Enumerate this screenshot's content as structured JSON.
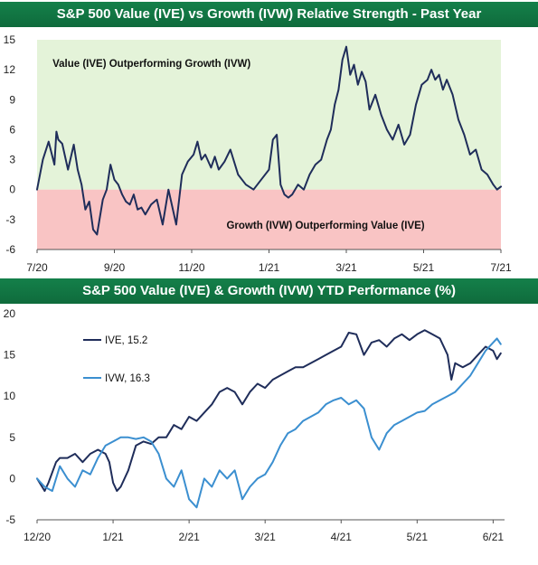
{
  "chart_data": [
    {
      "type": "line",
      "title": "S&P 500 Value (IVE) vs Growth (IVW) Relative Strength - Past Year",
      "xlabel": "",
      "ylabel": "",
      "ylim": [
        -6,
        15
      ],
      "y_ticks": [
        -6,
        -3,
        0,
        3,
        6,
        9,
        12,
        15
      ],
      "y_tick_labels": [
        "-6",
        "-3",
        "0",
        "3",
        "6",
        "9",
        "12",
        "15"
      ],
      "x_tick_labels": [
        "7/20",
        "9/20",
        "11/20",
        "1/21",
        "3/21",
        "5/21",
        "7/21"
      ],
      "x_tick_pos": [
        0,
        2,
        4,
        6,
        8,
        10,
        12
      ],
      "xlim": [
        0,
        12
      ],
      "grid": false,
      "zones": [
        {
          "from": 0,
          "to": 15,
          "color": "#e4f3d9"
        },
        {
          "from": -6,
          "to": 0,
          "color": "#f9c4c4"
        }
      ],
      "annotations": [
        {
          "text": "Value (IVE) Outperforming Growth (IVW)",
          "x": 0.4,
          "y": 12.3
        },
        {
          "text": "Growth (IVW) Outperforming Value (IVE)",
          "x": 4.9,
          "y": -3.9
        }
      ],
      "series": [
        {
          "color": "#1f2d5a",
          "x": [
            0,
            0.15,
            0.3,
            0.45,
            0.5,
            0.55,
            0.65,
            0.8,
            0.95,
            1.05,
            1.15,
            1.25,
            1.35,
            1.45,
            1.55,
            1.7,
            1.8,
            1.9,
            2.0,
            2.1,
            2.2,
            2.3,
            2.4,
            2.5,
            2.6,
            2.7,
            2.8,
            2.95,
            3.1,
            3.25,
            3.4,
            3.6,
            3.75,
            3.9,
            4.05,
            4.15,
            4.25,
            4.35,
            4.5,
            4.6,
            4.7,
            4.85,
            5.0,
            5.2,
            5.4,
            5.6,
            5.8,
            6.0,
            6.1,
            6.2,
            6.3,
            6.4,
            6.5,
            6.6,
            6.75,
            6.9,
            7.05,
            7.2,
            7.35,
            7.5,
            7.6,
            7.7,
            7.8,
            7.9,
            8.0,
            8.1,
            8.2,
            8.3,
            8.4,
            8.5,
            8.6,
            8.75,
            8.9,
            9.05,
            9.2,
            9.35,
            9.5,
            9.65,
            9.8,
            9.95,
            10.1,
            10.2,
            10.3,
            10.4,
            10.5,
            10.6,
            10.75,
            10.9,
            11.05,
            11.2,
            11.35,
            11.5,
            11.65,
            11.8,
            11.9,
            12.0
          ],
          "y": [
            0,
            3,
            4.8,
            2.5,
            5.8,
            5.0,
            4.6,
            2.0,
            4.5,
            2.0,
            0.5,
            -2.0,
            -1.2,
            -4.0,
            -4.5,
            -1.0,
            0,
            2.5,
            1.0,
            0.5,
            -0.5,
            -1.2,
            -1.5,
            -0.5,
            -2.0,
            -1.8,
            -2.5,
            -1.5,
            -1.0,
            -3.5,
            0,
            -3.5,
            1.5,
            2.8,
            3.5,
            4.8,
            3.0,
            3.5,
            2.2,
            3.3,
            2.0,
            2.8,
            4.0,
            1.5,
            0.5,
            0,
            1.0,
            2.0,
            5.0,
            5.5,
            0.5,
            -0.5,
            -0.8,
            -0.5,
            0.5,
            0,
            1.5,
            2.5,
            3.0,
            5.0,
            6.0,
            8.5,
            10.0,
            13.0,
            14.3,
            11.5,
            12.5,
            10.5,
            11.8,
            10.8,
            8.0,
            9.5,
            7.5,
            6.0,
            5.0,
            6.5,
            4.5,
            5.5,
            8.5,
            10.5,
            11.0,
            12.0,
            11.0,
            11.5,
            10.0,
            11.0,
            9.5,
            7.0,
            5.5,
            3.5,
            4.0,
            2.0,
            1.5,
            0.5,
            0,
            0.3
          ]
        }
      ]
    },
    {
      "type": "line",
      "title": "S&P 500 Value (IVE) & Growth (IVW) YTD Performance (%)",
      "xlabel": "",
      "ylabel": "",
      "ylim": [
        -5,
        20
      ],
      "y_ticks": [
        -5,
        0,
        5,
        10,
        15,
        20
      ],
      "y_tick_labels": [
        "-5",
        "0",
        "5",
        "10",
        "15",
        "20"
      ],
      "x_tick_labels": [
        "12/20",
        "1/21",
        "2/21",
        "3/21",
        "4/21",
        "5/21",
        "6/21"
      ],
      "x_tick_pos": [
        0,
        1,
        2,
        3,
        4,
        5,
        6
      ],
      "xlim": [
        0,
        6.15
      ],
      "grid": false,
      "legend": "top-left",
      "series": [
        {
          "name": "IVE, 15.2",
          "color": "#1f2d5a",
          "x": [
            0,
            0.1,
            0.15,
            0.25,
            0.3,
            0.4,
            0.5,
            0.6,
            0.7,
            0.8,
            0.9,
            0.95,
            1.0,
            1.05,
            1.1,
            1.2,
            1.3,
            1.4,
            1.5,
            1.6,
            1.7,
            1.8,
            1.9,
            2.0,
            2.1,
            2.2,
            2.3,
            2.4,
            2.5,
            2.6,
            2.7,
            2.8,
            2.9,
            3.0,
            3.1,
            3.2,
            3.3,
            3.4,
            3.5,
            3.6,
            3.7,
            3.8,
            3.9,
            4.0,
            4.1,
            4.2,
            4.3,
            4.4,
            4.5,
            4.6,
            4.7,
            4.8,
            4.9,
            5.0,
            5.1,
            5.2,
            5.3,
            5.4,
            5.45,
            5.5,
            5.6,
            5.7,
            5.8,
            5.9,
            6.0,
            6.05,
            6.1
          ],
          "y": [
            0,
            -1.5,
            -0.5,
            2.0,
            2.5,
            2.5,
            3.0,
            2.0,
            3.0,
            3.5,
            3.0,
            2.0,
            -0.5,
            -1.5,
            -1.0,
            1.0,
            4.0,
            4.5,
            4.2,
            5.0,
            5.0,
            6.5,
            6.0,
            7.5,
            7.0,
            8.0,
            9.0,
            10.5,
            11.0,
            10.5,
            9.0,
            10.5,
            11.5,
            11.0,
            12.0,
            12.5,
            13.0,
            13.5,
            13.5,
            14.0,
            14.5,
            15.0,
            15.5,
            16.0,
            17.7,
            17.5,
            15.0,
            16.5,
            16.8,
            16.0,
            17.0,
            17.5,
            16.8,
            17.5,
            18.0,
            17.5,
            17.0,
            15.0,
            12.0,
            14.0,
            13.5,
            14.0,
            15.0,
            16.0,
            15.5,
            14.5,
            15.2
          ]
        },
        {
          "name": "IVW, 16.3",
          "color": "#3b8fd0",
          "x": [
            0,
            0.1,
            0.2,
            0.3,
            0.4,
            0.5,
            0.6,
            0.7,
            0.8,
            0.9,
            1.0,
            1.1,
            1.2,
            1.3,
            1.4,
            1.5,
            1.6,
            1.7,
            1.8,
            1.9,
            2.0,
            2.1,
            2.2,
            2.3,
            2.4,
            2.5,
            2.6,
            2.7,
            2.8,
            2.9,
            3.0,
            3.1,
            3.2,
            3.3,
            3.4,
            3.5,
            3.6,
            3.7,
            3.8,
            3.9,
            4.0,
            4.1,
            4.2,
            4.3,
            4.4,
            4.5,
            4.6,
            4.7,
            4.8,
            4.9,
            5.0,
            5.1,
            5.2,
            5.3,
            5.4,
            5.5,
            5.6,
            5.7,
            5.8,
            5.9,
            6.0,
            6.05,
            6.1
          ],
          "y": [
            0,
            -1.0,
            -1.5,
            1.5,
            0,
            -1.0,
            1.0,
            0.5,
            2.5,
            4.0,
            4.5,
            5.0,
            5.0,
            4.8,
            5.0,
            4.5,
            3.0,
            0,
            -1.0,
            1.0,
            -2.5,
            -3.5,
            0,
            -1.0,
            1.0,
            0,
            1.0,
            -2.5,
            -1.0,
            0,
            0.5,
            2.0,
            4.0,
            5.5,
            6.0,
            7.0,
            7.5,
            8.0,
            9.0,
            9.5,
            9.8,
            9.0,
            9.5,
            8.5,
            5.0,
            3.5,
            5.5,
            6.5,
            7.0,
            7.5,
            8.0,
            8.2,
            9.0,
            9.5,
            10.0,
            10.5,
            11.5,
            12.5,
            14.0,
            15.5,
            16.5,
            17.0,
            16.3
          ]
        }
      ]
    }
  ]
}
